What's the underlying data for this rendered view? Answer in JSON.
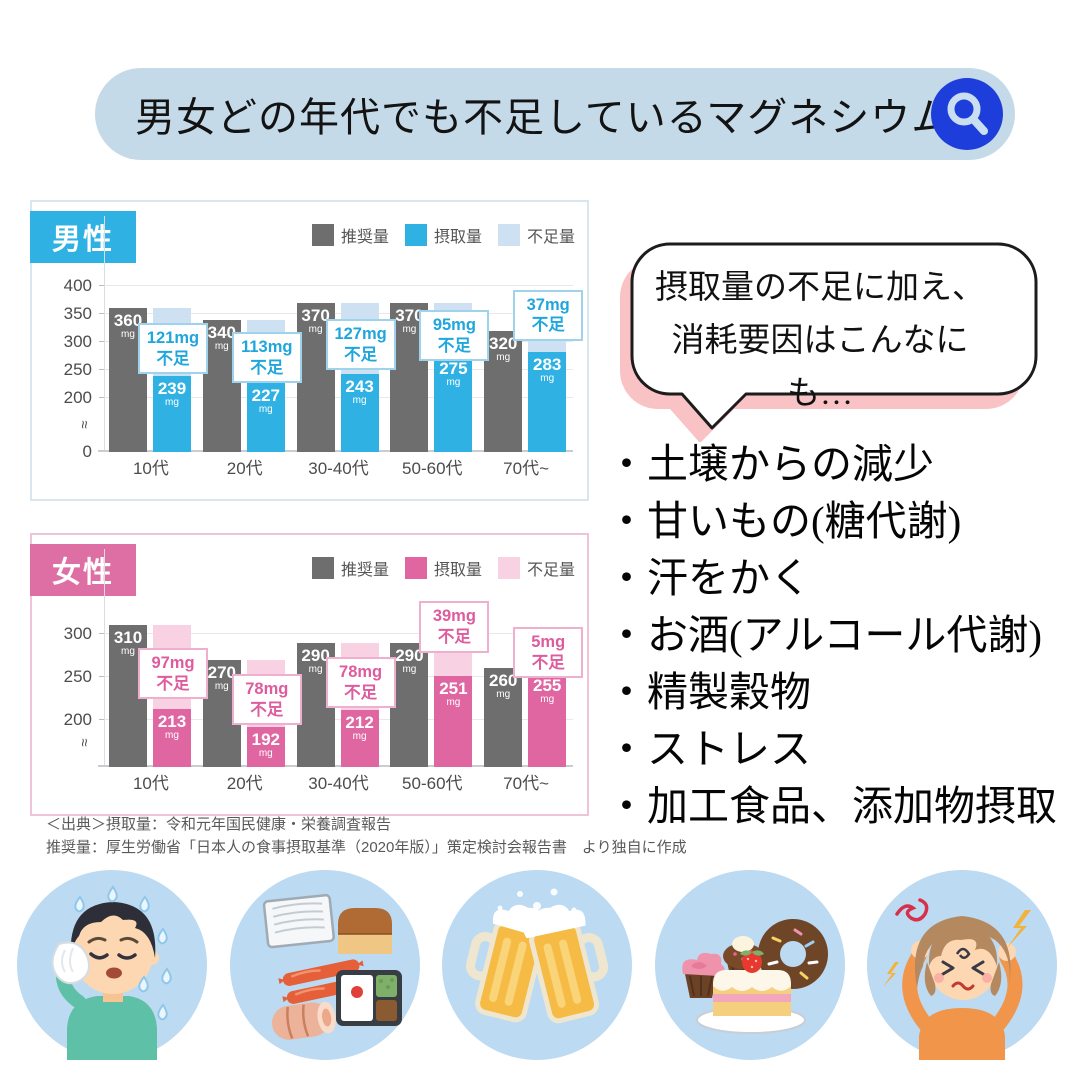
{
  "header": {
    "title": "男女どの年代でも不足しているマグネシウム",
    "search_icon": "magnifier"
  },
  "chart_data": [
    {
      "id": "male",
      "type": "bar",
      "title": "男性",
      "unit": "mg",
      "deficit_suffix": "不足",
      "categories": [
        "10代",
        "20代",
        "30-40代",
        "50-60代",
        "70代~"
      ],
      "series": [
        {
          "name": "推奨量",
          "values": [
            360,
            340,
            370,
            370,
            320
          ]
        },
        {
          "name": "摂取量",
          "values": [
            239,
            227,
            243,
            275,
            283
          ]
        },
        {
          "name": "不足量",
          "values": [
            121,
            113,
            127,
            95,
            37
          ]
        }
      ],
      "legend": [
        {
          "label": "推奨量",
          "color": "#6E6E6E"
        },
        {
          "label": "摂取量",
          "color": "#2FB1E3"
        },
        {
          "label": "不足量",
          "color": "#CEE1F2"
        }
      ],
      "y_ticks": [
        400,
        350,
        300,
        250,
        200
      ],
      "show_zero_tick": true,
      "axis_break": "≈",
      "ylim": [
        0,
        400
      ],
      "colors": {
        "accent": "#2FB1E3",
        "recommended": "#6E6E6E",
        "intake": "#2FB1E3",
        "deficit": "#CEE1F2",
        "panel_border": "#D8E6F0",
        "box_border": "#9FD3EC",
        "box_text": "#1FA6DC"
      }
    },
    {
      "id": "female",
      "type": "bar",
      "title": "女性",
      "unit": "mg",
      "deficit_suffix": "不足",
      "categories": [
        "10代",
        "20代",
        "30-40代",
        "50-60代",
        "70代~"
      ],
      "series": [
        {
          "name": "推奨量",
          "values": [
            310,
            270,
            290,
            290,
            260
          ]
        },
        {
          "name": "摂取量",
          "values": [
            213,
            192,
            212,
            251,
            255
          ]
        },
        {
          "name": "不足量",
          "values": [
            97,
            78,
            78,
            39,
            5
          ]
        }
      ],
      "legend": [
        {
          "label": "推奨量",
          "color": "#6E6E6E"
        },
        {
          "label": "摂取量",
          "color": "#DF66A1"
        },
        {
          "label": "不足量",
          "color": "#F8D2E3"
        }
      ],
      "y_ticks": [
        300,
        250,
        200
      ],
      "show_zero_tick": false,
      "axis_break": "≈",
      "ylim": [
        0,
        310
      ],
      "colors": {
        "accent": "#DD6FA4",
        "recommended": "#6E6E6E",
        "intake": "#DF66A1",
        "deficit": "#F8D2E3",
        "panel_border": "#F0C4D8",
        "box_border": "#EFAFCE",
        "box_text": "#DE5C9D"
      }
    }
  ],
  "source_lines": [
    "＜出典＞摂取量：令和元年国民健康・栄養調査報告",
    "推奨量：厚生労働省「日本人の食事摂取基準（2020年版）」策定検討会報告書　より独自に作成"
  ],
  "bubble": {
    "lines": [
      "摂取量の不足に加え、",
      "消耗要因はこんなにも…"
    ]
  },
  "factors_bullet": "・",
  "factors": [
    "土壌からの減少",
    "甘いもの(糖代謝)",
    "汗をかく",
    "お酒(アルコール代謝)",
    "精製穀物",
    "ストレス",
    "加工食品、添加物摂取"
  ],
  "illustrations": [
    {
      "name": "sweating-man",
      "label": "汗をかく人"
    },
    {
      "name": "processed-foods",
      "label": "加工食品"
    },
    {
      "name": "beer-mugs",
      "label": "ビールで乾杯"
    },
    {
      "name": "sweets",
      "label": "甘いもの"
    },
    {
      "name": "stressed-woman",
      "label": "ストレスを抱える人"
    }
  ]
}
